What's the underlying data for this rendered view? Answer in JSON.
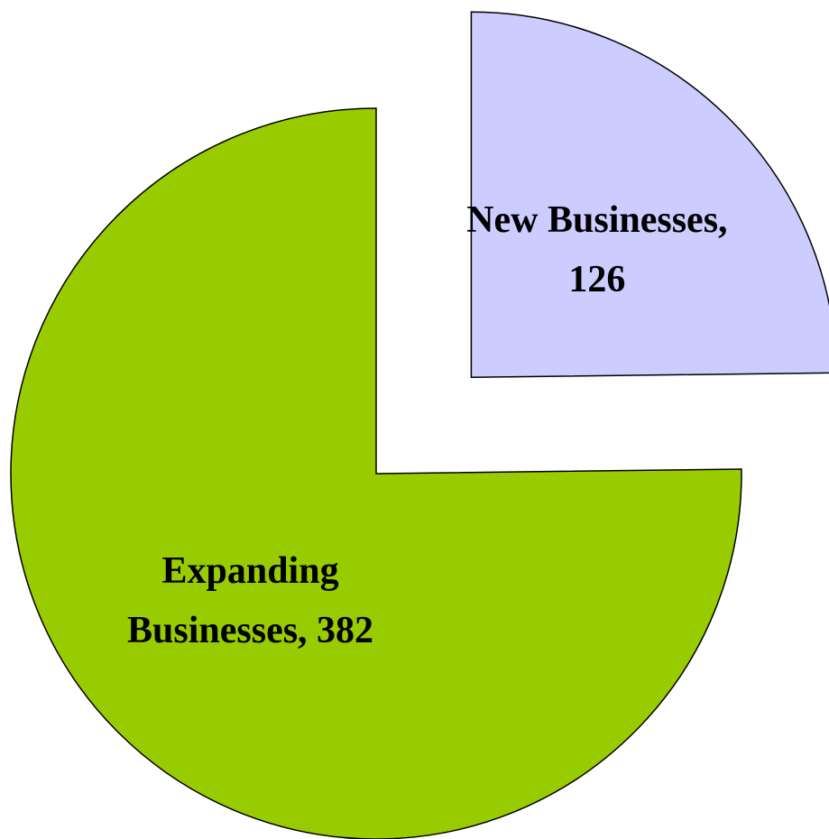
{
  "chart_data": {
    "type": "pie",
    "value_labels": [
      "New Businesses, 126",
      "Expanding Businesses, 382"
    ],
    "values": [
      126,
      382
    ],
    "colors": [
      "#ccccff",
      "#99cc00"
    ]
  }
}
